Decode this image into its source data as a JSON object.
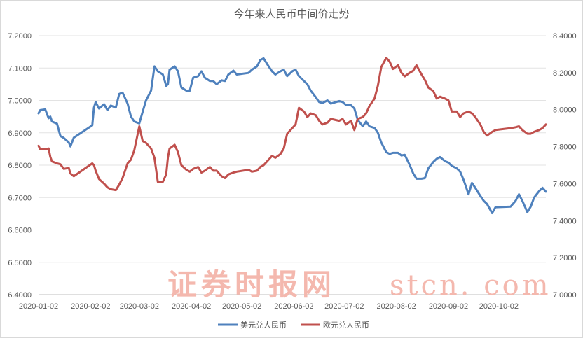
{
  "chart_data": {
    "type": "line",
    "title": "今年来人民币中间价走势",
    "x_tick_labels": [
      "2020-01-02",
      "2020-02-02",
      "2020-03-02",
      "2020-04-02",
      "2020-05-02",
      "2020-06-02",
      "2020-07-02",
      "2020-08-02",
      "2020-09-02",
      "2020-10-02"
    ],
    "y_left_ticks": [
      "6.4000",
      "6.5000",
      "6.6000",
      "6.7000",
      "6.8000",
      "6.9000",
      "7.0000",
      "7.1000",
      "7.2000"
    ],
    "y_right_ticks": [
      "7.0000",
      "7.2000",
      "7.4000",
      "7.6000",
      "7.8000",
      "8.0000",
      "8.2000",
      "8.4000"
    ],
    "ylim_left": [
      6.4,
      7.2
    ],
    "ylim_right": [
      7.0,
      8.4
    ],
    "xlim": [
      "2020-01-02",
      "2020-10-30"
    ],
    "grid": "horizontal",
    "legend_position": "bottom",
    "series": [
      {
        "name": "美元兑人民币",
        "axis": "left",
        "color": "#4f81bd",
        "x": [
          "2020-01-02",
          "2020-01-03",
          "2020-01-06",
          "2020-01-08",
          "2020-01-09",
          "2020-01-10",
          "2020-01-13",
          "2020-01-15",
          "2020-01-17",
          "2020-01-20",
          "2020-01-21",
          "2020-01-23",
          "2020-02-03",
          "2020-02-04",
          "2020-02-05",
          "2020-02-07",
          "2020-02-10",
          "2020-02-12",
          "2020-02-14",
          "2020-02-17",
          "2020-02-19",
          "2020-02-21",
          "2020-02-24",
          "2020-02-26",
          "2020-02-28",
          "2020-03-02",
          "2020-03-04",
          "2020-03-06",
          "2020-03-09",
          "2020-03-11",
          "2020-03-13",
          "2020-03-16",
          "2020-03-18",
          "2020-03-19",
          "2020-03-20",
          "2020-03-23",
          "2020-03-25",
          "2020-03-27",
          "2020-03-30",
          "2020-04-01",
          "2020-04-03",
          "2020-04-06",
          "2020-04-08",
          "2020-04-10",
          "2020-04-13",
          "2020-04-15",
          "2020-04-17",
          "2020-04-20",
          "2020-04-22",
          "2020-04-24",
          "2020-04-27",
          "2020-04-29",
          "2020-05-06",
          "2020-05-08",
          "2020-05-11",
          "2020-05-13",
          "2020-05-15",
          "2020-05-18",
          "2020-05-20",
          "2020-05-22",
          "2020-05-25",
          "2020-05-27",
          "2020-05-29",
          "2020-06-01",
          "2020-06-03",
          "2020-06-05",
          "2020-06-08",
          "2020-06-10",
          "2020-06-12",
          "2020-06-15",
          "2020-06-17",
          "2020-06-19",
          "2020-06-22",
          "2020-06-24",
          "2020-06-29",
          "2020-07-01",
          "2020-07-03",
          "2020-07-06",
          "2020-07-08",
          "2020-07-10",
          "2020-07-13",
          "2020-07-15",
          "2020-07-17",
          "2020-07-20",
          "2020-07-22",
          "2020-07-24",
          "2020-07-27",
          "2020-07-29",
          "2020-07-31",
          "2020-08-03",
          "2020-08-05",
          "2020-08-07",
          "2020-08-10",
          "2020-08-12",
          "2020-08-14",
          "2020-08-17",
          "2020-08-19",
          "2020-08-21",
          "2020-08-24",
          "2020-08-26",
          "2020-08-28",
          "2020-08-31",
          "2020-09-02",
          "2020-09-04",
          "2020-09-07",
          "2020-09-09",
          "2020-09-11",
          "2020-09-14",
          "2020-09-16",
          "2020-09-18",
          "2020-09-21",
          "2020-09-23",
          "2020-09-25",
          "2020-09-28",
          "2020-09-30",
          "2020-10-09",
          "2020-10-12",
          "2020-10-14",
          "2020-10-16",
          "2020-10-19",
          "2020-10-21",
          "2020-10-23",
          "2020-10-26",
          "2020-10-28",
          "2020-10-30"
        ],
        "values": [
          6.96,
          6.97,
          6.972,
          6.945,
          6.95,
          6.935,
          6.928,
          6.89,
          6.884,
          6.87,
          6.858,
          6.885,
          6.923,
          6.978,
          6.995,
          6.975,
          6.988,
          6.97,
          6.984,
          6.978,
          7.02,
          7.024,
          6.99,
          6.95,
          6.935,
          6.929,
          6.965,
          7.0,
          7.03,
          7.105,
          7.09,
          7.08,
          7.045,
          7.05,
          7.095,
          7.105,
          7.09,
          7.04,
          7.03,
          7.03,
          7.07,
          7.075,
          7.09,
          7.07,
          7.06,
          7.06,
          7.05,
          7.062,
          7.06,
          7.08,
          7.092,
          7.08,
          7.085,
          7.095,
          7.105,
          7.125,
          7.13,
          7.105,
          7.09,
          7.08,
          7.09,
          7.095,
          7.075,
          7.09,
          7.095,
          7.075,
          7.06,
          7.05,
          7.03,
          7.01,
          6.995,
          6.992,
          7.0,
          6.99,
          6.998,
          6.995,
          6.986,
          6.985,
          6.975,
          6.94,
          6.92,
          6.935,
          6.92,
          6.915,
          6.9,
          6.87,
          6.84,
          6.835,
          6.838,
          6.838,
          6.83,
          6.832,
          6.8,
          6.775,
          6.758,
          6.758,
          6.76,
          6.79,
          6.81,
          6.82,
          6.825,
          6.812,
          6.808,
          6.798,
          6.79,
          6.78,
          6.755,
          6.71,
          6.745,
          6.73,
          6.705,
          6.69,
          6.68,
          6.652,
          6.67,
          6.672,
          6.69,
          6.71,
          6.69,
          6.655,
          6.672,
          6.7,
          6.72,
          6.73,
          6.718
        ]
      },
      {
        "name": "欧元兑人民币",
        "axis": "right",
        "color": "#c0504d",
        "x": [
          "2020-01-02",
          "2020-01-03",
          "2020-01-06",
          "2020-01-08",
          "2020-01-09",
          "2020-01-10",
          "2020-01-13",
          "2020-01-15",
          "2020-01-17",
          "2020-01-20",
          "2020-01-21",
          "2020-01-23",
          "2020-02-03",
          "2020-02-04",
          "2020-02-05",
          "2020-02-07",
          "2020-02-10",
          "2020-02-12",
          "2020-02-14",
          "2020-02-17",
          "2020-02-19",
          "2020-02-21",
          "2020-02-24",
          "2020-02-26",
          "2020-02-28",
          "2020-03-02",
          "2020-03-04",
          "2020-03-06",
          "2020-03-09",
          "2020-03-11",
          "2020-03-13",
          "2020-03-16",
          "2020-03-18",
          "2020-03-19",
          "2020-03-20",
          "2020-03-23",
          "2020-03-25",
          "2020-03-27",
          "2020-03-30",
          "2020-04-01",
          "2020-04-03",
          "2020-04-06",
          "2020-04-08",
          "2020-04-10",
          "2020-04-13",
          "2020-04-15",
          "2020-04-17",
          "2020-04-20",
          "2020-04-22",
          "2020-04-24",
          "2020-04-27",
          "2020-04-29",
          "2020-05-06",
          "2020-05-08",
          "2020-05-11",
          "2020-05-13",
          "2020-05-15",
          "2020-05-18",
          "2020-05-20",
          "2020-05-22",
          "2020-05-25",
          "2020-05-27",
          "2020-05-29",
          "2020-06-01",
          "2020-06-03",
          "2020-06-05",
          "2020-06-08",
          "2020-06-10",
          "2020-06-12",
          "2020-06-15",
          "2020-06-17",
          "2020-06-19",
          "2020-06-22",
          "2020-06-24",
          "2020-06-29",
          "2020-07-01",
          "2020-07-03",
          "2020-07-06",
          "2020-07-08",
          "2020-07-10",
          "2020-07-13",
          "2020-07-15",
          "2020-07-17",
          "2020-07-20",
          "2020-07-22",
          "2020-07-24",
          "2020-07-27",
          "2020-07-29",
          "2020-07-31",
          "2020-08-03",
          "2020-08-05",
          "2020-08-07",
          "2020-08-10",
          "2020-08-12",
          "2020-08-14",
          "2020-08-17",
          "2020-08-19",
          "2020-08-21",
          "2020-08-24",
          "2020-08-26",
          "2020-08-28",
          "2020-08-31",
          "2020-09-02",
          "2020-09-04",
          "2020-09-07",
          "2020-09-09",
          "2020-09-11",
          "2020-09-14",
          "2020-09-16",
          "2020-09-18",
          "2020-09-21",
          "2020-09-23",
          "2020-09-25",
          "2020-09-28",
          "2020-09-30",
          "2020-10-09",
          "2020-10-12",
          "2020-10-14",
          "2020-10-16",
          "2020-10-19",
          "2020-10-21",
          "2020-10-23",
          "2020-10-26",
          "2020-10-28",
          "2020-10-30"
        ],
        "values": [
          7.805,
          7.785,
          7.785,
          7.79,
          7.745,
          7.72,
          7.71,
          7.705,
          7.68,
          7.685,
          7.655,
          7.64,
          7.71,
          7.7,
          7.67,
          7.625,
          7.6,
          7.58,
          7.57,
          7.565,
          7.595,
          7.63,
          7.71,
          7.73,
          7.78,
          7.91,
          7.83,
          7.82,
          7.79,
          7.74,
          7.61,
          7.61,
          7.65,
          7.74,
          7.79,
          7.81,
          7.77,
          7.7,
          7.675,
          7.665,
          7.68,
          7.69,
          7.66,
          7.67,
          7.69,
          7.67,
          7.67,
          7.64,
          7.63,
          7.65,
          7.66,
          7.665,
          7.675,
          7.665,
          7.67,
          7.69,
          7.7,
          7.73,
          7.75,
          7.74,
          7.76,
          7.79,
          7.87,
          7.9,
          7.92,
          8.01,
          7.99,
          7.96,
          7.98,
          7.97,
          7.94,
          7.92,
          7.93,
          7.95,
          7.94,
          7.95,
          7.92,
          7.94,
          7.89,
          7.95,
          7.96,
          7.98,
          8.02,
          8.06,
          8.13,
          8.23,
          8.28,
          8.26,
          8.22,
          8.24,
          8.2,
          8.18,
          8.2,
          8.21,
          8.24,
          8.19,
          8.16,
          8.12,
          8.1,
          8.06,
          8.07,
          8.06,
          8.05,
          7.99,
          7.99,
          7.96,
          7.98,
          7.99,
          7.98,
          7.96,
          7.92,
          7.88,
          7.86,
          7.88,
          7.89,
          7.9,
          7.905,
          7.91,
          7.89,
          7.87,
          7.87,
          7.88,
          7.89,
          7.9,
          7.92
        ]
      }
    ]
  },
  "watermark": {
    "cn": "证券时报网",
    "en": "stcn. com"
  }
}
